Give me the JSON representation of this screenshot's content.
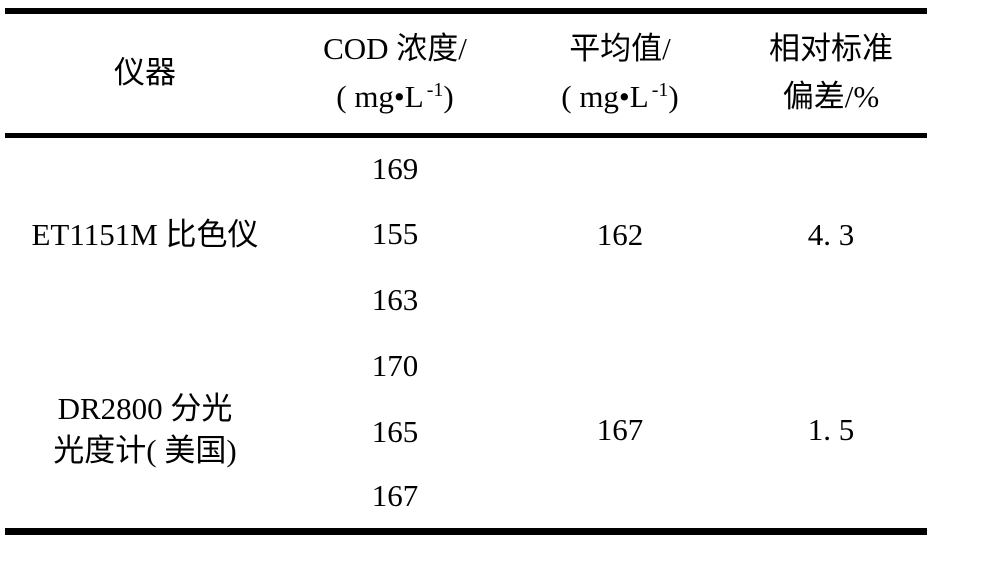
{
  "table": {
    "columns": [
      {
        "line1": "仪器"
      },
      {
        "line1": "COD 浓度/",
        "unit_pre": "( mg•L",
        "unit_sup": "-1",
        "unit_post": ")"
      },
      {
        "line1": "平均值/",
        "unit_pre": "( mg•L",
        "unit_sup": "-1",
        "unit_post": ")"
      },
      {
        "line1": "相对标准",
        "line2": "偏差/%"
      }
    ],
    "groups": [
      {
        "instrument_line1": "ET1151M 比色仪",
        "cod_values": [
          "169",
          "155",
          "163"
        ],
        "average": "162",
        "rsd": "4. 3"
      },
      {
        "instrument_line1": "DR2800 分光",
        "instrument_line2": "光度计( 美国)",
        "cod_values": [
          "170",
          "165",
          "167"
        ],
        "average": "167",
        "rsd": "1. 5"
      }
    ]
  }
}
